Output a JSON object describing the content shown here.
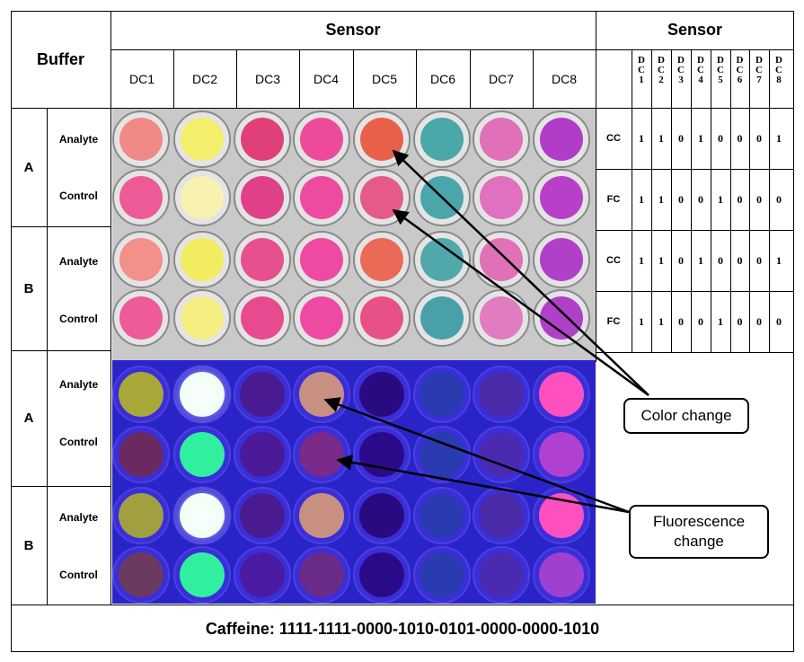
{
  "header": {
    "buffer": "Buffer",
    "sensor_left": "Sensor",
    "sensor_right": "Sensor"
  },
  "sensor_columns": [
    "DC1",
    "DC2",
    "DC3",
    "DC4",
    "DC5",
    "DC6",
    "DC7",
    "DC8"
  ],
  "code_columns": [
    "D\nC\n1",
    "D\nC\n2",
    "D\nC\n3",
    "D\nC\n4",
    "D\nC\n5",
    "D\nC\n6",
    "D\nC\n7",
    "D\nC\n8"
  ],
  "buffers": {
    "upper_a": "A",
    "upper_b": "B",
    "lower_a": "A",
    "lower_b": "B"
  },
  "row_labels": {
    "analyte": "Analyte",
    "control": "Control"
  },
  "code_table": [
    {
      "type": "CC",
      "values": [
        "1",
        "1",
        "0",
        "1",
        "0",
        "0",
        "0",
        "1"
      ]
    },
    {
      "type": "FC",
      "values": [
        "1",
        "1",
        "0",
        "0",
        "1",
        "0",
        "0",
        "0"
      ]
    },
    {
      "type": "CC",
      "values": [
        "1",
        "1",
        "0",
        "1",
        "0",
        "0",
        "0",
        "1"
      ]
    },
    {
      "type": "FC",
      "values": [
        "1",
        "1",
        "0",
        "0",
        "1",
        "0",
        "0",
        "0"
      ]
    }
  ],
  "callouts": {
    "color_change": "Color change",
    "fluorescence_change": "Fluorescence change"
  },
  "footer": "Caffeine: 1111-1111-0000-1010-0101-0000-0000-1010",
  "colors": {
    "visible_plate_bg": "#c9c9c9",
    "uv_plate_bg": "#2a24c8",
    "visible_rows": [
      [
        "#f08a86",
        "#f4ef6a",
        "#e0407a",
        "#ee4a9c",
        "#e8604a",
        "#4aa8a8",
        "#e070b8",
        "#b03cc8"
      ],
      [
        "#ee5a98",
        "#f8f2b0",
        "#e04088",
        "#ee4aa0",
        "#e45a8a",
        "#4aa6aa",
        "#e070c0",
        "#b840c8"
      ],
      [
        "#f2908a",
        "#f2ec60",
        "#e6508e",
        "#ee4aa2",
        "#ea6a58",
        "#50a8aa",
        "#e070b8",
        "#b040c8"
      ],
      [
        "#ee5a9a",
        "#f4ee80",
        "#e84a90",
        "#ee4aa4",
        "#e8508a",
        "#4aa0a8",
        "#e27cc0",
        "#b040c8"
      ]
    ],
    "uv_rows": [
      [
        "#a8a838",
        "#e8fff0",
        "#4a1a90",
        "#c89080",
        "#2a0a80",
        "#2a3ab0",
        "#4a2aa8",
        "#ff50c0"
      ],
      [
        "#6a2a60",
        "#30f0a0",
        "#4a1a98",
        "#7a2a88",
        "#2a0a88",
        "#2a3ab0",
        "#4a2ab0",
        "#b040d0"
      ],
      [
        "#a0a040",
        "#e8fff0",
        "#4a1a90",
        "#c89080",
        "#2a0a80",
        "#2a3ab0",
        "#4a2aa8",
        "#ff50c0"
      ],
      [
        "#6a3a60",
        "#30f0a0",
        "#4a1aa0",
        "#6a2a88",
        "#2a0a88",
        "#2a3ab0",
        "#4a2ab0",
        "#a040d0"
      ]
    ]
  }
}
